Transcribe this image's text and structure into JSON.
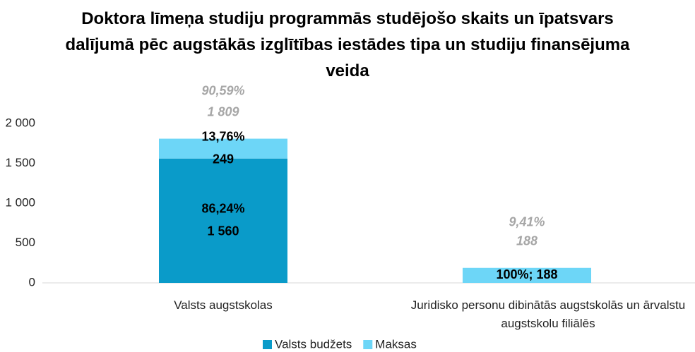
{
  "chart_data": {
    "type": "stacked_bar",
    "title": "Doktora līmeņa studiju programmās studējošo skaits un īpatsvars dalījumā pēc augstākās izglītības iestādes tipa un studiju finansējuma veida",
    "categories": [
      "Valsts augstskolas",
      "Juridisko personu dibinātās augstskolās un ārvalstu augstskolu filiālēs"
    ],
    "series": [
      {
        "name": "Valsts budžets",
        "color": "#0a9bc9",
        "values": [
          1560,
          0
        ],
        "value_labels": [
          "1 560",
          null
        ],
        "share_labels": [
          "86,24%",
          null
        ]
      },
      {
        "name": "Maksas",
        "color": "#6dd6f7",
        "values": [
          249,
          188
        ],
        "value_labels": [
          "249",
          "100%; 188"
        ],
        "share_labels": [
          "13,76%",
          null
        ]
      }
    ],
    "totals": [
      1809,
      188
    ],
    "total_labels": [
      "1 809",
      "188"
    ],
    "total_share_labels": [
      "90,59%",
      "9,41%"
    ],
    "ylim": [
      0,
      2000
    ],
    "yticks": [
      0,
      {
        "value": 500,
        "label": "500"
      },
      {
        "value": 1000,
        "label": "1 000"
      },
      {
        "value": 1500,
        "label": "1 500"
      },
      {
        "value": 2000,
        "label": "2 000"
      }
    ],
    "grid": false,
    "legend": "bottom"
  }
}
